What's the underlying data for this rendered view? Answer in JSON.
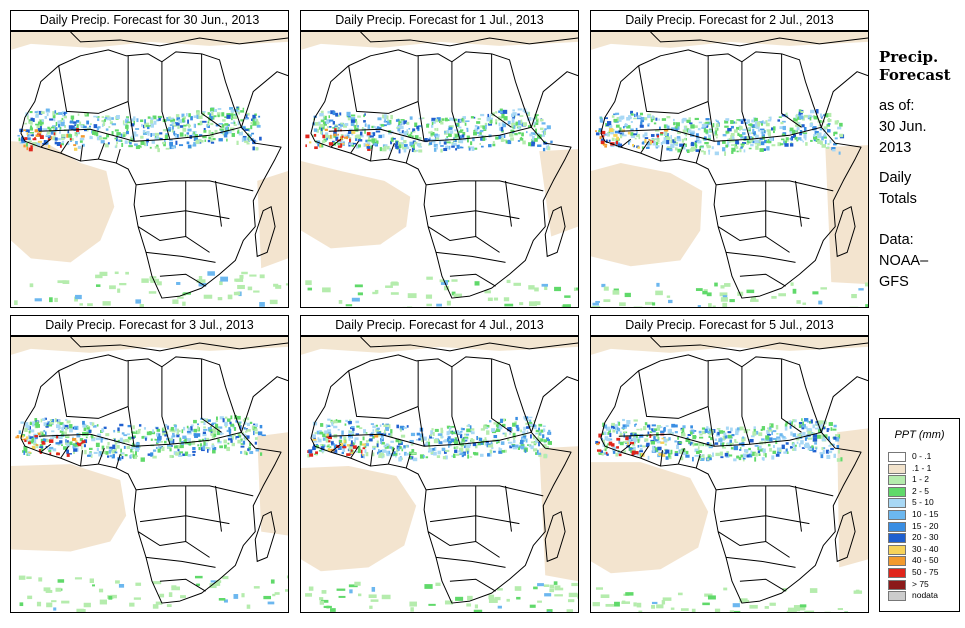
{
  "panels": [
    {
      "title": "Daily Precip. Forecast for  30 Jun., 2013"
    },
    {
      "title": "Daily Precip. Forecast for  1 Jul., 2013"
    },
    {
      "title": "Daily Precip. Forecast for  2 Jul., 2013"
    },
    {
      "title": "Daily Precip. Forecast for  3 Jul., 2013"
    },
    {
      "title": "Daily Precip. Forecast for  4 Jul., 2013"
    },
    {
      "title": "Daily Precip. Forecast for  5 Jul., 2013"
    }
  ],
  "sidebar": {
    "heading_line1": "Precip.",
    "heading_line2": "Forecast",
    "asof_line1": "as of:",
    "asof_line2": "30 Jun.",
    "asof_line3": "2013",
    "daily_line1": "Daily",
    "daily_line2": "Totals",
    "data_line1": "Data:",
    "data_line2": "NOAA–",
    "data_line3": "GFS"
  },
  "legend": {
    "title": "PPT (mm)",
    "items": [
      {
        "label": "0 - .1",
        "color": "#ffffff"
      },
      {
        "label": ".1 - 1",
        "color": "#f2e3cc"
      },
      {
        "label": "1 - 2",
        "color": "#b5ecad"
      },
      {
        "label": "2 - 5",
        "color": "#60d96a"
      },
      {
        "label": "5 - 10",
        "color": "#a8d8f5"
      },
      {
        "label": "10 - 15",
        "color": "#6cb7ef"
      },
      {
        "label": "15 - 20",
        "color": "#3a8ee3"
      },
      {
        "label": "20 - 30",
        "color": "#1f5fcf"
      },
      {
        "label": "30 - 40",
        "color": "#f7d35a"
      },
      {
        "label": "40 - 50",
        "color": "#f29a2e"
      },
      {
        "label": "50 - 75",
        "color": "#e0251b"
      },
      {
        "label": "> 75",
        "color": "#8b1a1a"
      },
      {
        "label": "nodata",
        "color": "#cccccc"
      }
    ]
  }
}
